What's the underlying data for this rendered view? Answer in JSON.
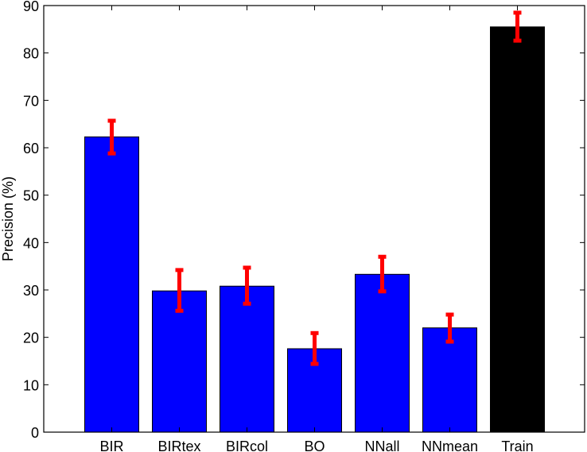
{
  "chart_data": {
    "type": "bar",
    "title": "",
    "xlabel": "",
    "ylabel": "Precision (%)",
    "ylim": [
      0,
      90
    ],
    "yticks": [
      0,
      10,
      20,
      30,
      40,
      50,
      60,
      70,
      80,
      90
    ],
    "grid": false,
    "legend": null,
    "categories": [
      "BIR",
      "BIRtex",
      "BIRcol",
      "BO",
      "NNall",
      "NNmean",
      "Train"
    ],
    "values": [
      62.3,
      29.8,
      30.8,
      17.6,
      33.3,
      22.0,
      85.5
    ],
    "error_low": [
      58.8,
      25.6,
      27.1,
      14.4,
      29.7,
      19.1,
      82.6
    ],
    "error_high": [
      65.7,
      34.2,
      34.7,
      20.9,
      37.0,
      24.8,
      88.5
    ],
    "bar_colors": [
      "#0000ff",
      "#0000ff",
      "#0000ff",
      "#0000ff",
      "#0000ff",
      "#0000ff",
      "#000000"
    ],
    "error_color": "#ff0000"
  }
}
